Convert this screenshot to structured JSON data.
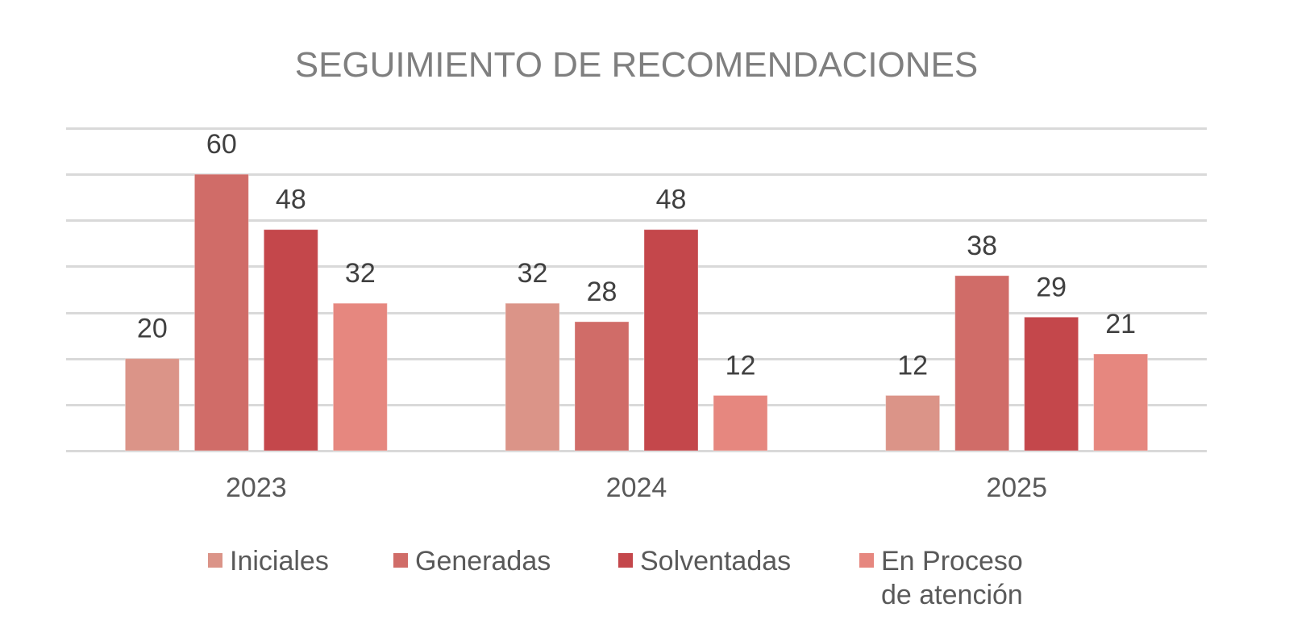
{
  "chart_data": {
    "type": "bar",
    "title": "SEGUIMIENTO DE RECOMENDACIONES",
    "xlabel": "",
    "ylabel": "",
    "categories": [
      "2023",
      "2024",
      "2025"
    ],
    "series": [
      {
        "name": "Iniciales",
        "color": "#DB9488",
        "values": [
          20,
          32,
          12
        ]
      },
      {
        "name": "Generadas",
        "color": "#D06C68",
        "values": [
          60,
          28,
          38
        ]
      },
      {
        "name": "Solventadas",
        "color": "#C4474B",
        "values": [
          48,
          48,
          29
        ]
      },
      {
        "name": "En Proceso\nde  atención",
        "color": "#E6877F",
        "values": [
          32,
          12,
          21
        ]
      }
    ],
    "ylim": [
      0,
      70
    ],
    "ytick_step": 10,
    "y_axis_labels_visible": false,
    "grid": true,
    "data_labels": true,
    "legend_position": "bottom"
  }
}
